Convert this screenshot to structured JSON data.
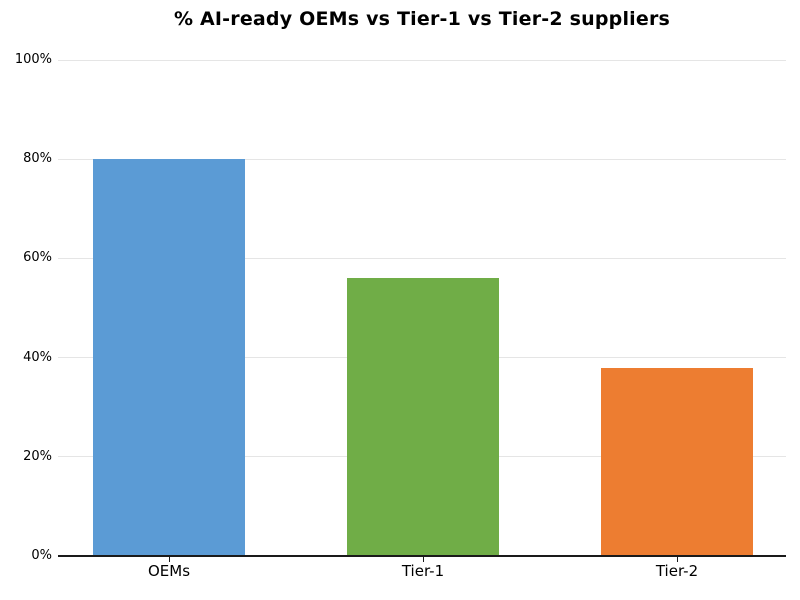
{
  "chart_data": {
    "type": "bar",
    "title": "% AI-ready OEMs vs Tier-1 vs Tier-2 suppliers",
    "categories": [
      "OEMs",
      "Tier-1",
      "Tier-2"
    ],
    "values": [
      80,
      56,
      38
    ],
    "value_unit": "%",
    "xlabel": "",
    "ylabel": "",
    "ylim": [
      0,
      100
    ],
    "yticks": [
      0,
      20,
      40,
      60,
      80,
      100
    ],
    "ytick_labels": [
      "0%",
      "20%",
      "40%",
      "60%",
      "80%",
      "100%"
    ],
    "bar_colors": [
      "#5B9BD5",
      "#70AD47",
      "#ED7D31"
    ],
    "grid": "horizontal",
    "legend_position": "none"
  },
  "colors": {
    "background": "#ffffff",
    "gridline": "#e5e5e5",
    "axis_line": "#1a1a1a",
    "text": "#000000"
  }
}
